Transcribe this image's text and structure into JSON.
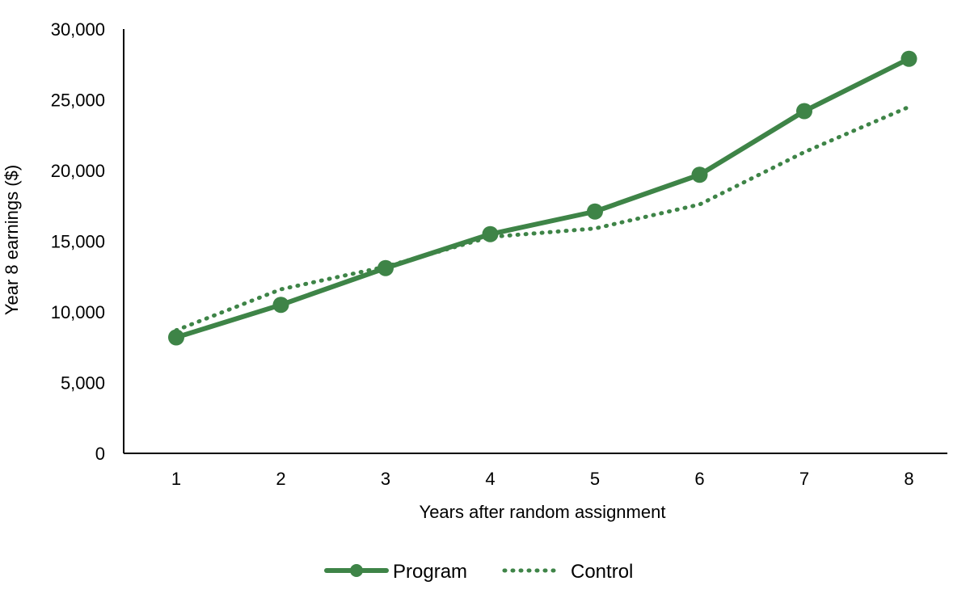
{
  "chart_data": {
    "type": "line",
    "title": "",
    "xlabel": "Years after random assignment",
    "ylabel": "Year 8 earnings ($)",
    "x": [
      1,
      2,
      3,
      4,
      5,
      6,
      7,
      8
    ],
    "x_tick_labels": [
      "1",
      "2",
      "3",
      "4",
      "5",
      "6",
      "7",
      "8"
    ],
    "ylim": [
      0,
      30000
    ],
    "y_ticks": [
      0,
      5000,
      10000,
      15000,
      20000,
      25000,
      30000
    ],
    "y_tick_labels": [
      "0",
      "5,000",
      "10,000",
      "15,000",
      "20,000",
      "25,000",
      "30,000"
    ],
    "grid": false,
    "legend_position": "bottom",
    "series": [
      {
        "name": "Program",
        "style": "solid-markers",
        "color": "#3e8447",
        "values": [
          8200,
          10500,
          13100,
          15500,
          17100,
          19700,
          24200,
          27900
        ]
      },
      {
        "name": "Control",
        "style": "dotted",
        "color": "#3e8447",
        "values": [
          8700,
          11600,
          13200,
          15300,
          15900,
          17600,
          21300,
          24500
        ]
      }
    ]
  }
}
